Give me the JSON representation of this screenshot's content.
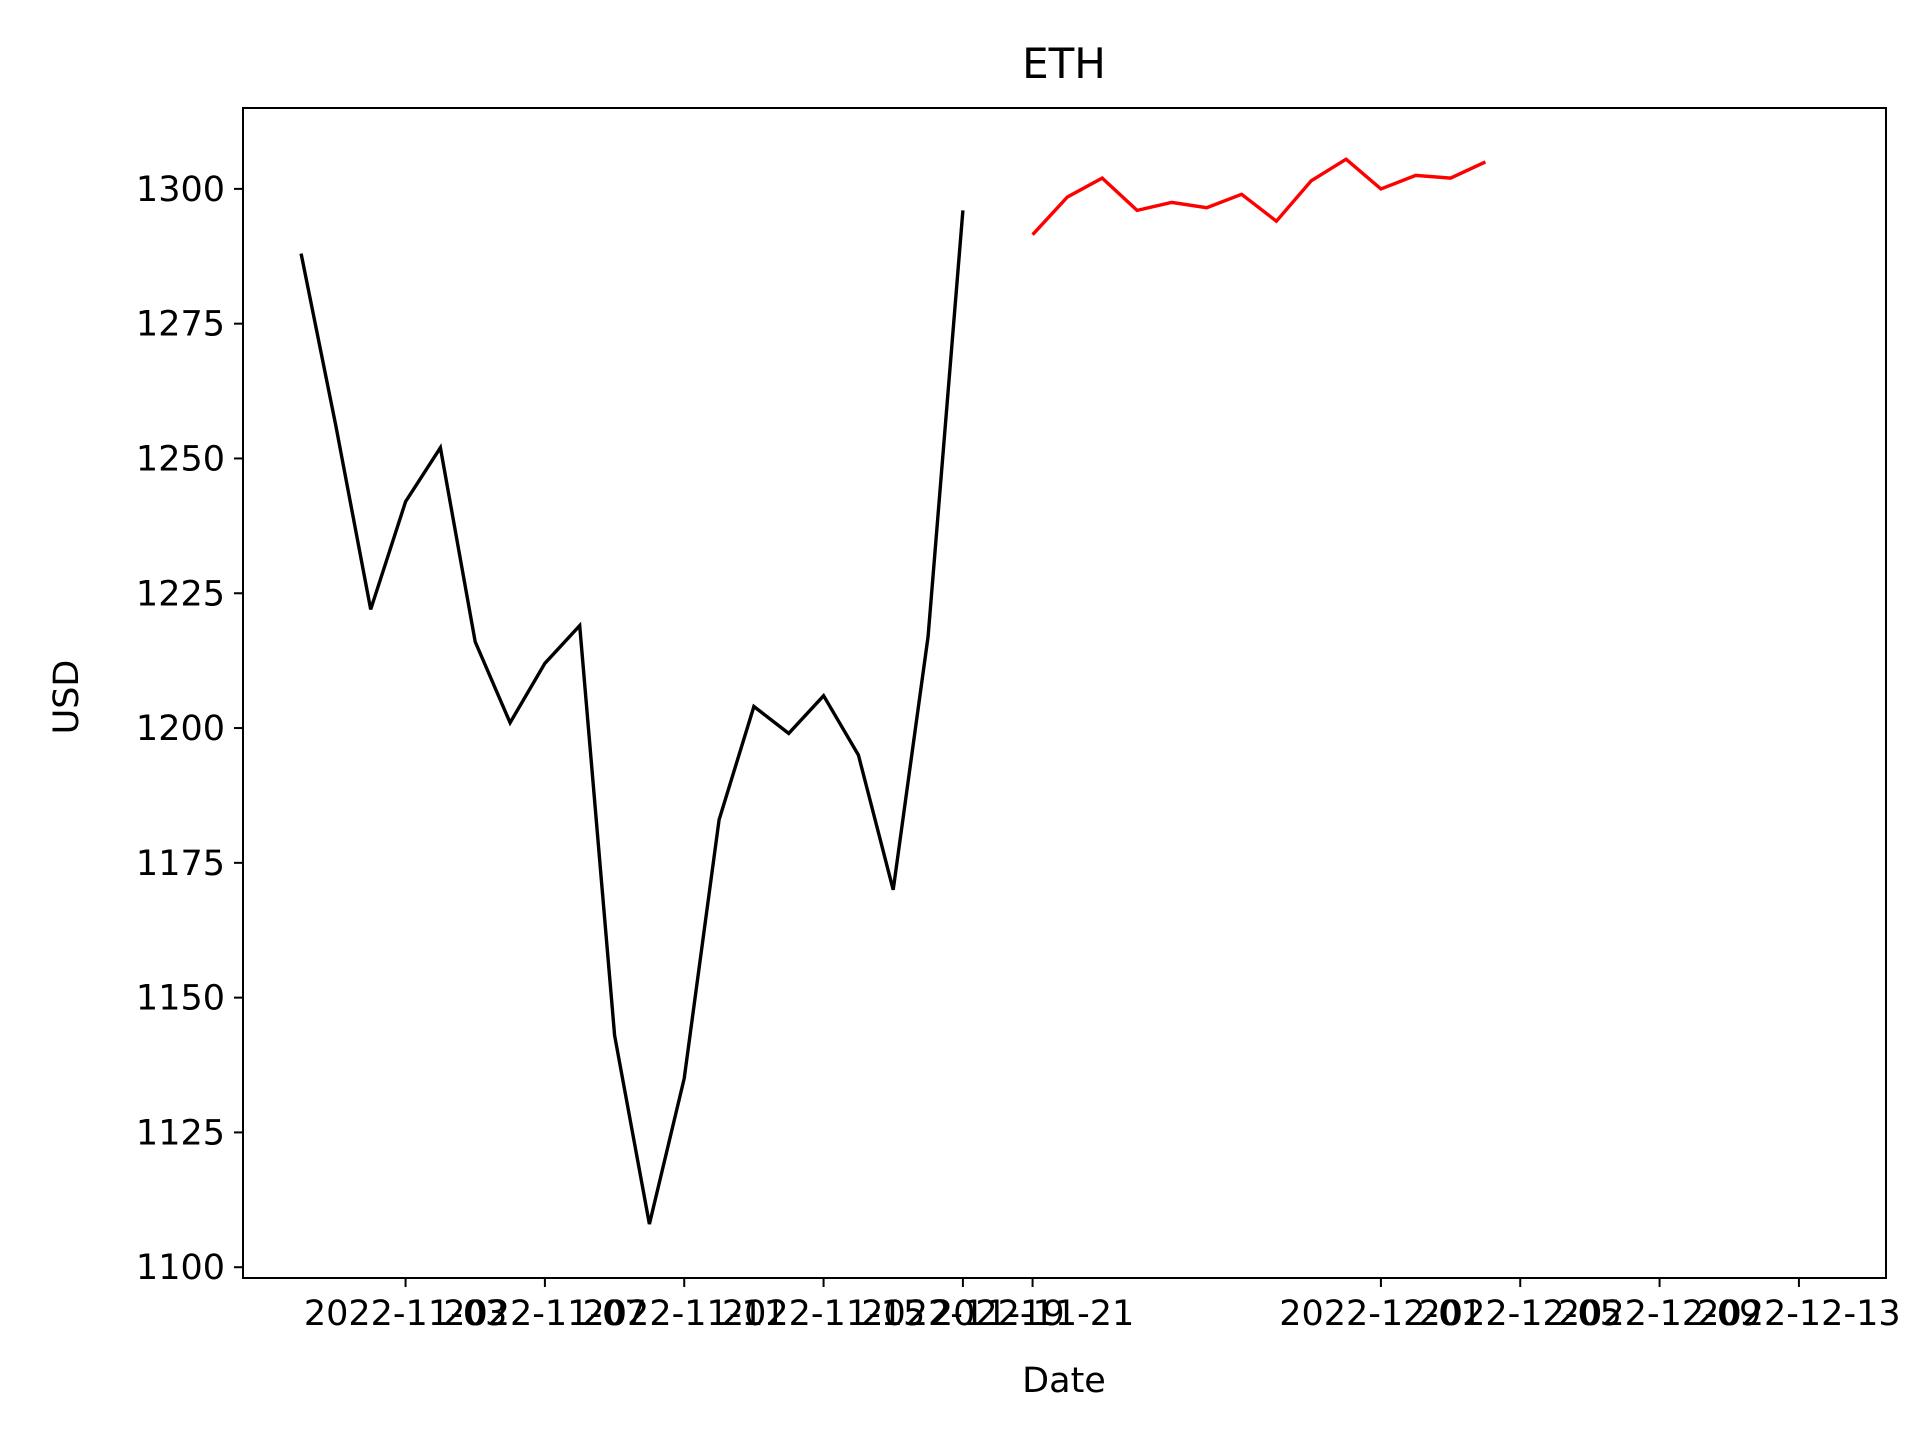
{
  "chart_data": {
    "type": "line",
    "title": "ETH",
    "xlabel": "Date",
    "ylabel": "USD",
    "ylim": [
      1098,
      1315
    ],
    "xlim": [
      "2022-10-29T08:00",
      "2022-12-15T12:00"
    ],
    "x_ticks": [
      "2022-11-03",
      "2022-11-07",
      "2022-11-11",
      "2022-11-15",
      "2022-11-19",
      "2022-11-21",
      "2022-12-01",
      "2022-12-05",
      "2022-12-09",
      "2022-12-13"
    ],
    "y_ticks": [
      1100,
      1125,
      1150,
      1175,
      1200,
      1225,
      1250,
      1275,
      1300
    ],
    "grid": false,
    "legend": "none",
    "series": [
      {
        "color": "#000000",
        "x": [
          "2022-10-31",
          "2022-11-01",
          "2022-11-02",
          "2022-11-03",
          "2022-11-04",
          "2022-11-05",
          "2022-11-06",
          "2022-11-07",
          "2022-11-08",
          "2022-11-09",
          "2022-11-10",
          "2022-11-11",
          "2022-11-12",
          "2022-11-13",
          "2022-11-14",
          "2022-11-15",
          "2022-11-16",
          "2022-11-17",
          "2022-11-18",
          "2022-11-19",
          "2022-11-20"
        ],
        "y": [
          1288,
          1256,
          1222,
          1242,
          1252,
          1216,
          1201,
          1212,
          1219,
          1143,
          1108,
          1135,
          1183,
          1204,
          1199,
          1206,
          1195,
          1170,
          1217,
          1296,
          null
        ]
      },
      {
        "color": "#ff0000",
        "x": [
          "2022-11-21",
          "2022-11-22",
          "2022-11-23",
          "2022-11-24",
          "2022-11-25",
          "2022-11-26",
          "2022-11-27",
          "2022-11-28",
          "2022-11-29",
          "2022-11-30",
          "2022-12-01",
          "2022-12-02",
          "2022-12-03",
          "2022-12-04"
        ],
        "y": [
          1291.5,
          1298.5,
          1302,
          1296,
          1297.5,
          1296.5,
          1299,
          1294,
          1301.5,
          1305.5,
          1300,
          1302.5,
          1302,
          1305
        ]
      }
    ]
  }
}
